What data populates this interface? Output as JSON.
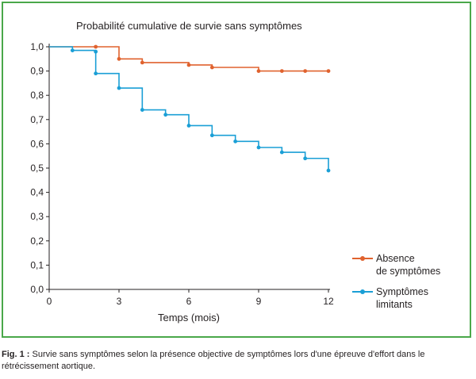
{
  "caption": {
    "label": "Fig. 1 :",
    "text": "Survie sans symptômes selon la présence objective de symptômes lors d'une épreuve d'effort dans le rétrécissement aortique."
  },
  "chart_data": {
    "type": "line",
    "step": true,
    "title": "Probabilité cumulative de survie sans symptômes",
    "xlabel": "Temps (mois)",
    "ylabel": "",
    "xlim": [
      0,
      12
    ],
    "ylim": [
      0,
      1
    ],
    "x_ticks": [
      "0",
      "3",
      "6",
      "9",
      "12"
    ],
    "y_ticks": [
      "0,0",
      "0,1",
      "0,2",
      "0,3",
      "0,4",
      "0,5",
      "0,6",
      "0,7",
      "0,8",
      "0,9",
      "1,0"
    ],
    "grid": false,
    "legend_position": "bottom-right",
    "series": [
      {
        "name": "Absence de symptômes",
        "color": "#e0622e",
        "points": [
          [
            0,
            1.0
          ],
          [
            2,
            1.0
          ],
          [
            3,
            0.95
          ],
          [
            4,
            0.935
          ],
          [
            6,
            0.925
          ],
          [
            7,
            0.915
          ],
          [
            9,
            0.9
          ],
          [
            10,
            0.9
          ],
          [
            11,
            0.9
          ],
          [
            12,
            0.9
          ]
        ]
      },
      {
        "name": "Symptômes limitants",
        "color": "#1a9fd6",
        "points": [
          [
            0,
            1.0
          ],
          [
            1,
            0.985
          ],
          [
            2,
            0.98
          ],
          [
            2,
            0.89
          ],
          [
            3,
            0.83
          ],
          [
            4,
            0.74
          ],
          [
            5,
            0.72
          ],
          [
            6,
            0.675
          ],
          [
            7,
            0.635
          ],
          [
            8,
            0.61
          ],
          [
            9,
            0.585
          ],
          [
            10,
            0.565
          ],
          [
            11,
            0.54
          ],
          [
            12,
            0.49
          ]
        ]
      }
    ]
  },
  "legend": {
    "items": [
      {
        "line1": "Absence",
        "line2": "de symptômes",
        "color": "#e0622e"
      },
      {
        "line1": "Symptômes",
        "line2": "limitants",
        "color": "#1a9fd6"
      }
    ]
  }
}
